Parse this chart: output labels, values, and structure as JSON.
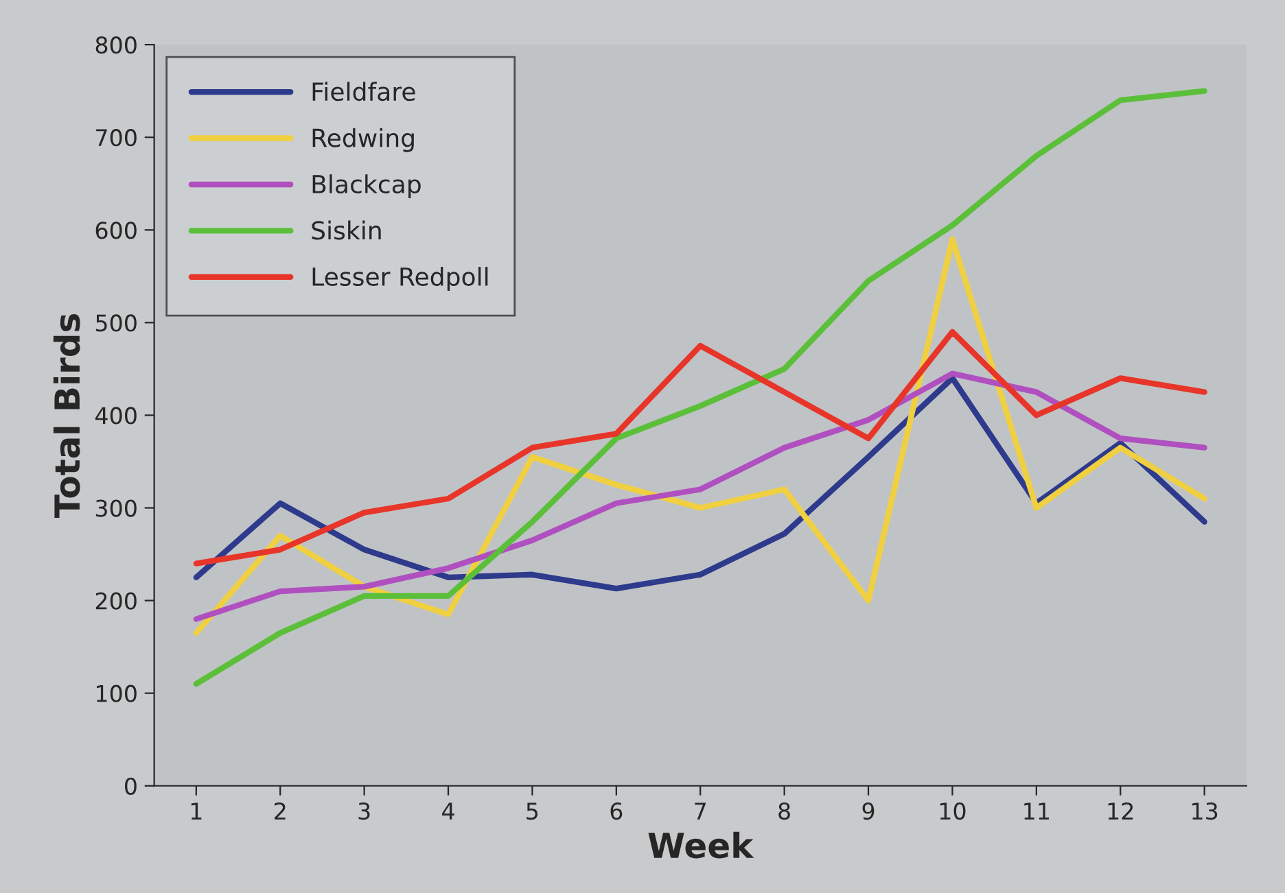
{
  "chart_data": {
    "type": "line",
    "xlabel": "Week",
    "ylabel": "Total Birds",
    "categories": [
      "1",
      "2",
      "3",
      "4",
      "5",
      "6",
      "7",
      "8",
      "9",
      "10",
      "11",
      "12",
      "13"
    ],
    "ylim": [
      0,
      800
    ],
    "yticks": [
      0,
      100,
      200,
      300,
      400,
      500,
      600,
      700,
      800
    ],
    "grid": false,
    "legend": "top left",
    "marker": "none",
    "line_style": "solid",
    "series": [
      {
        "name": "Fieldfare",
        "color": "#2e3a8c",
        "values": [
          225,
          305,
          255,
          225,
          228,
          213,
          228,
          272,
          355,
          440,
          305,
          370,
          285
        ]
      },
      {
        "name": "Redwing",
        "color": "#f0d040",
        "values": [
          165,
          270,
          215,
          185,
          355,
          325,
          300,
          320,
          200,
          590,
          300,
          365,
          310
        ]
      },
      {
        "name": "Blackcap",
        "color": "#b050c0",
        "values": [
          180,
          210,
          215,
          235,
          265,
          305,
          320,
          365,
          395,
          445,
          425,
          375,
          365
        ]
      },
      {
        "name": "Siskin",
        "color": "#5cbf3a",
        "values": [
          110,
          165,
          205,
          205,
          285,
          375,
          410,
          450,
          545,
          605,
          680,
          740,
          750
        ]
      },
      {
        "name": "Lesser Redpoll",
        "color": "#e8352a",
        "values": [
          240,
          255,
          295,
          310,
          365,
          380,
          475,
          425,
          375,
          490,
          400,
          440,
          425
        ]
      }
    ]
  }
}
